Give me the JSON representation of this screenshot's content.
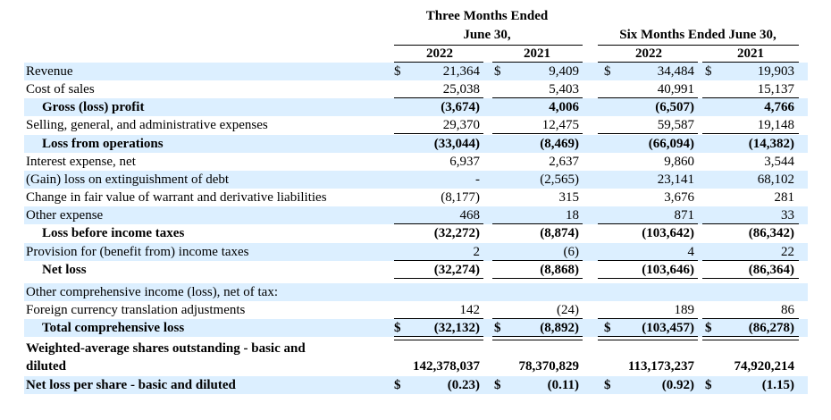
{
  "header": {
    "three_months_l1": "Three Months Ended",
    "three_months_l2": "June 30,",
    "six_months": "Six Months Ended June 30,",
    "cols": [
      "2022",
      "2021",
      "2022",
      "2021"
    ]
  },
  "rows": [
    {
      "label": "Revenue",
      "bold": false,
      "indent": false,
      "band": true,
      "dollar": true,
      "values": [
        "21,364",
        "9,409",
        "34,484",
        "19,903"
      ],
      "line_below": ""
    },
    {
      "label": "Cost of sales",
      "bold": false,
      "indent": false,
      "band": false,
      "dollar": false,
      "values": [
        "25,038",
        "5,403",
        "40,991",
        "15,137"
      ],
      "line_below": "single"
    },
    {
      "label": "Gross (loss) profit",
      "bold": true,
      "indent": true,
      "band": true,
      "dollar": false,
      "values": [
        "(3,674)",
        "4,006",
        "(6,507)",
        "4,766"
      ],
      "line_below": ""
    },
    {
      "label": "Selling, general, and administrative expenses",
      "bold": false,
      "indent": false,
      "band": false,
      "dollar": false,
      "values": [
        "29,370",
        "12,475",
        "59,587",
        "19,148"
      ],
      "line_below": "single"
    },
    {
      "label": "Loss from operations",
      "bold": true,
      "indent": true,
      "band": true,
      "dollar": false,
      "values": [
        "(33,044)",
        "(8,469)",
        "(66,094)",
        "(14,382)"
      ],
      "line_below": ""
    },
    {
      "label": "Interest expense, net",
      "bold": false,
      "indent": false,
      "band": false,
      "dollar": false,
      "values": [
        "6,937",
        "2,637",
        "9,860",
        "3,544"
      ],
      "line_below": ""
    },
    {
      "label": "(Gain) loss on extinguishment of debt",
      "bold": false,
      "indent": false,
      "band": true,
      "dollar": false,
      "values": [
        "-",
        "(2,565)",
        "23,141",
        "68,102"
      ],
      "line_below": ""
    },
    {
      "label": "Change in fair value of warrant and derivative liabilities",
      "bold": false,
      "indent": false,
      "band": false,
      "dollar": false,
      "values": [
        "(8,177)",
        "315",
        "3,676",
        "281"
      ],
      "line_below": ""
    },
    {
      "label": "Other expense",
      "bold": false,
      "indent": false,
      "band": true,
      "dollar": false,
      "values": [
        "468",
        "18",
        "871",
        "33"
      ],
      "line_below": "single"
    },
    {
      "label": "Loss before income taxes",
      "bold": true,
      "indent": true,
      "band": false,
      "dollar": false,
      "values": [
        "(32,272)",
        "(8,874)",
        "(103,642)",
        "(86,342)"
      ],
      "line_below": ""
    },
    {
      "label": "Provision for (benefit from) income taxes",
      "bold": false,
      "indent": false,
      "band": true,
      "dollar": false,
      "values": [
        "2",
        "(6)",
        "4",
        "22"
      ],
      "line_below": "single"
    },
    {
      "label": "Net loss",
      "bold": true,
      "indent": true,
      "band": false,
      "dollar": false,
      "values": [
        "(32,274)",
        "(8,868)",
        "(103,646)",
        "(86,364)"
      ],
      "line_below": "single"
    },
    {
      "label": "Other comprehensive income (loss), net of tax:",
      "bold": false,
      "indent": false,
      "band": true,
      "dollar": false,
      "values": [
        "",
        "",
        "",
        ""
      ],
      "line_below": ""
    },
    {
      "label": "Foreign currency translation adjustments",
      "bold": false,
      "indent": false,
      "band": false,
      "dollar": false,
      "values": [
        "142",
        "(24)",
        "189",
        "86"
      ],
      "line_below": "single"
    },
    {
      "label": "Total comprehensive loss",
      "bold": true,
      "indent": true,
      "band": true,
      "dollar": true,
      "values": [
        "(32,132)",
        "(8,892)",
        "(103,457)",
        "(86,278)"
      ],
      "line_below": "double"
    },
    {
      "label": "Weighted-average shares outstanding - basic and",
      "label2": "diluted",
      "bold": true,
      "indent": false,
      "band": false,
      "dollar": false,
      "values": [
        "142,378,037",
        "78,370,829",
        "113,173,237",
        "74,920,214"
      ],
      "line_below": ""
    },
    {
      "label": "Net loss per share - basic and diluted",
      "bold": true,
      "indent": false,
      "band": true,
      "dollar": true,
      "values": [
        "(0.23)",
        "(0.11)",
        "(0.92)",
        "(1.15)"
      ],
      "line_below": ""
    }
  ]
}
